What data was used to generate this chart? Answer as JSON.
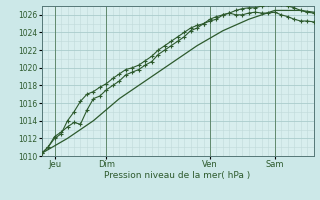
{
  "background_color": "#cce8e8",
  "plot_bg_color": "#d8eeee",
  "grid_major_color": "#b0d0d0",
  "grid_minor_color": "#c4e0e0",
  "line_color": "#2d5a2d",
  "title": "Pression niveau de la mer( hPa )",
  "ylim": [
    1010,
    1027
  ],
  "yticks": [
    1010,
    1012,
    1014,
    1016,
    1018,
    1020,
    1022,
    1024,
    1026
  ],
  "day_labels": [
    "Jeu",
    "Dim",
    "Ven",
    "Sam"
  ],
  "vlines_x": [
    1.0,
    5.0,
    13.0,
    18.0
  ],
  "xmax": 21,
  "line1_x": [
    0,
    0.5,
    1.0,
    1.5,
    2.0,
    2.5,
    3.0,
    3.5,
    4.0,
    4.5,
    5.0,
    5.5,
    6.0,
    6.5,
    7.0,
    7.5,
    8.0,
    8.5,
    9.0,
    9.5,
    10.0,
    10.5,
    11.0,
    11.5,
    12.0,
    12.5,
    13.0,
    13.5,
    14.0,
    14.5,
    15.0,
    15.5,
    16.0,
    16.5,
    17.0,
    17.5,
    18.0,
    18.5,
    19.0,
    19.5,
    20.0,
    20.5,
    21.0
  ],
  "line1_y": [
    1010.3,
    1011.0,
    1012.2,
    1012.7,
    1013.3,
    1013.8,
    1013.6,
    1015.2,
    1016.5,
    1016.8,
    1017.5,
    1018.0,
    1018.5,
    1019.2,
    1019.5,
    1019.8,
    1020.3,
    1020.7,
    1021.5,
    1022.0,
    1022.5,
    1023.0,
    1023.5,
    1024.2,
    1024.5,
    1025.0,
    1025.5,
    1025.8,
    1026.0,
    1026.2,
    1026.5,
    1026.7,
    1026.8,
    1026.8,
    1027.0,
    1027.2,
    1027.3,
    1027.2,
    1027.0,
    1026.8,
    1026.5,
    1026.3,
    1026.2
  ],
  "line2_x": [
    0,
    0.5,
    1.0,
    1.5,
    2.0,
    2.5,
    3.0,
    3.5,
    4.0,
    4.5,
    5.0,
    5.5,
    6.0,
    6.5,
    7.0,
    7.5,
    8.0,
    8.5,
    9.0,
    9.5,
    10.0,
    10.5,
    11.0,
    11.5,
    12.0,
    12.5,
    13.0,
    13.5,
    14.0,
    14.5,
    15.0,
    15.5,
    16.0,
    16.5,
    17.0,
    17.5,
    18.0,
    18.5,
    19.0,
    19.5,
    20.0,
    20.5,
    21.0
  ],
  "line2_y": [
    1010.3,
    1011.0,
    1012.0,
    1012.5,
    1014.0,
    1015.0,
    1016.2,
    1017.0,
    1017.3,
    1017.8,
    1018.2,
    1018.8,
    1019.3,
    1019.8,
    1020.0,
    1020.3,
    1020.8,
    1021.3,
    1022.0,
    1022.5,
    1023.0,
    1023.5,
    1024.0,
    1024.5,
    1024.8,
    1025.0,
    1025.3,
    1025.5,
    1026.0,
    1026.2,
    1026.0,
    1026.0,
    1026.2,
    1026.3,
    1026.2,
    1026.2,
    1026.3,
    1026.0,
    1025.8,
    1025.5,
    1025.3,
    1025.3,
    1025.2
  ],
  "line3_x": [
    0,
    2.0,
    4.0,
    6.0,
    8.0,
    10.0,
    12.0,
    14.0,
    16.0,
    18.0,
    20.0,
    21.0
  ],
  "line3_y": [
    1010.3,
    1012.0,
    1014.0,
    1016.5,
    1018.5,
    1020.5,
    1022.5,
    1024.2,
    1025.5,
    1026.5,
    1026.5,
    1026.3
  ]
}
